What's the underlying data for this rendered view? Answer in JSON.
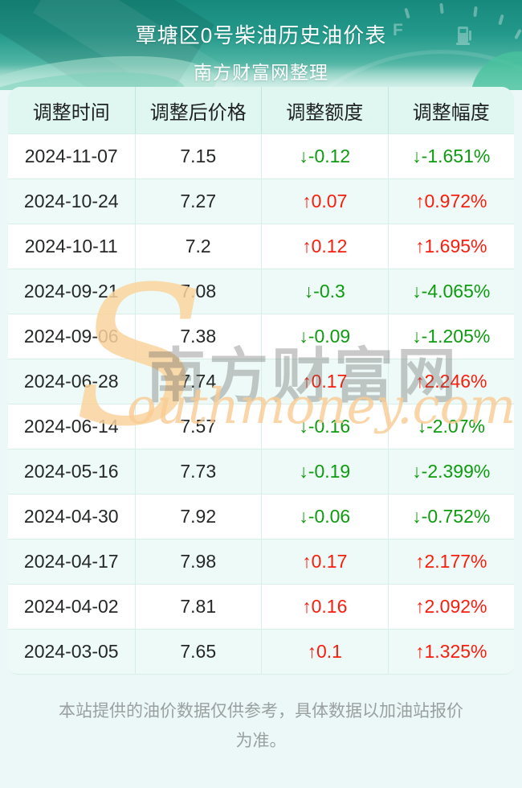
{
  "header": {
    "title": "覃塘区0号柴油历史油价表",
    "subtitle": "南方财富网整理",
    "gauge_letter": "F"
  },
  "table": {
    "columns": [
      "调整时间",
      "调整后价格",
      "调整额度",
      "调整幅度"
    ],
    "rows": [
      {
        "date": "2024-11-07",
        "price": "7.15",
        "change": "-0.12",
        "percent": "-1.651%",
        "direction": "down"
      },
      {
        "date": "2024-10-24",
        "price": "7.27",
        "change": "0.07",
        "percent": "0.972%",
        "direction": "up"
      },
      {
        "date": "2024-10-11",
        "price": "7.2",
        "change": "0.12",
        "percent": "1.695%",
        "direction": "up"
      },
      {
        "date": "2024-09-21",
        "price": "7.08",
        "change": "-0.3",
        "percent": "-4.065%",
        "direction": "down"
      },
      {
        "date": "2024-09-06",
        "price": "7.38",
        "change": "-0.09",
        "percent": "-1.205%",
        "direction": "down"
      },
      {
        "date": "2024-06-28",
        "price": "7.74",
        "change": "0.17",
        "percent": "2.246%",
        "direction": "up"
      },
      {
        "date": "2024-06-14",
        "price": "7.57",
        "change": "-0.16",
        "percent": "-2.07%",
        "direction": "down"
      },
      {
        "date": "2024-05-16",
        "price": "7.73",
        "change": "-0.19",
        "percent": "-2.399%",
        "direction": "down"
      },
      {
        "date": "2024-04-30",
        "price": "7.92",
        "change": "-0.06",
        "percent": "-0.752%",
        "direction": "down"
      },
      {
        "date": "2024-04-17",
        "price": "7.98",
        "change": "0.17",
        "percent": "2.177%",
        "direction": "up"
      },
      {
        "date": "2024-04-02",
        "price": "7.81",
        "change": "0.16",
        "percent": "2.092%",
        "direction": "up"
      },
      {
        "date": "2024-03-05",
        "price": "7.65",
        "change": "0.1",
        "percent": "1.325%",
        "direction": "up"
      }
    ]
  },
  "icons": {
    "up_arrow": "↑",
    "down_arrow": "↓"
  },
  "colors": {
    "up": "#f91d0e",
    "down": "#0e9b10",
    "accent_teal": "#1e9385"
  },
  "watermark": {
    "s": "S",
    "cn": "南方财富网",
    "en": "outhmoney.com"
  },
  "footer": {
    "disclaimer": "本站提供的油价数据仅供参考，具体数据以加油站报价为准。"
  }
}
